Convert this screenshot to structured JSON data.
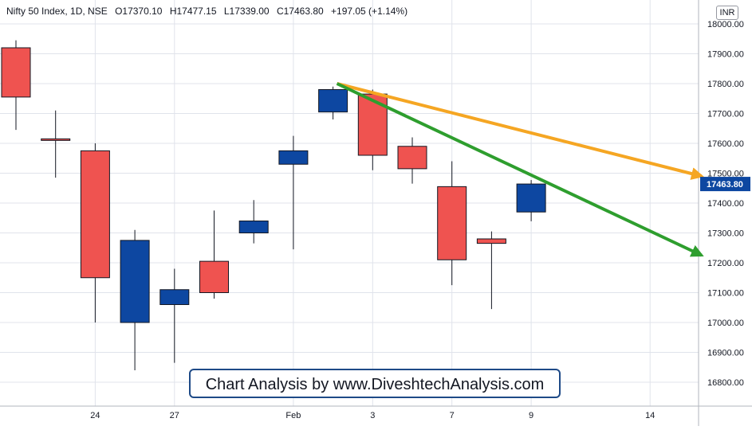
{
  "header": {
    "symbol": "Nifty 50 Index, 1D, NSE",
    "open": "O17370.10",
    "high": "H17477.15",
    "low": "L17339.00",
    "close": "C17463.80",
    "change": "+197.05 (+1.14%)"
  },
  "currency": "INR",
  "watermark": "Chart Analysis by www.DiveshtechAnalysis.com",
  "price_label": "17463.80",
  "colors": {
    "up": "#0d47a1",
    "down": "#ef5350",
    "grid": "#e0e3eb",
    "axis_text": "#131722",
    "orange_line": "#f5a623",
    "green_line": "#2e9e2e",
    "price_label_bg": "#0d47a1"
  },
  "chart_data": {
    "type": "candlestick",
    "ylim": [
      16730,
      18040
    ],
    "y_ticks": [
      16800,
      16900,
      17000,
      17100,
      17200,
      17300,
      17400,
      17500,
      17600,
      17700,
      17800,
      17900,
      18000
    ],
    "y_tick_labels": [
      "16800.00",
      "16900.00",
      "17000.00",
      "17100.00",
      "17200.00",
      "17300.00",
      "17400.00",
      "17500.00",
      "17600.00",
      "17700.00",
      "17800.00",
      "17900.00",
      "18000.00"
    ],
    "x_labels": [
      {
        "index": 2,
        "label": "24"
      },
      {
        "index": 4,
        "label": "27"
      },
      {
        "index": 7,
        "label": "Feb"
      },
      {
        "index": 9,
        "label": "3"
      },
      {
        "index": 11,
        "label": "7"
      },
      {
        "index": 13,
        "label": "9"
      },
      {
        "index": 16,
        "label": "14"
      }
    ],
    "candles": [
      {
        "index": 0,
        "open": 17920,
        "high": 17945,
        "low": 17645,
        "close": 17755
      },
      {
        "index": 1,
        "open": 17615,
        "high": 17710,
        "low": 17485,
        "close": 17610
      },
      {
        "index": 2,
        "open": 17575,
        "high": 17600,
        "low": 17000,
        "close": 17150
      },
      {
        "index": 3,
        "open": 17000,
        "high": 17310,
        "low": 16840,
        "close": 17275
      },
      {
        "index": 4,
        "open": 17060,
        "high": 17180,
        "low": 16865,
        "close": 17110
      },
      {
        "index": 5,
        "open": 17205,
        "high": 17375,
        "low": 17080,
        "close": 17100
      },
      {
        "index": 6,
        "open": 17300,
        "high": 17410,
        "low": 17265,
        "close": 17340
      },
      {
        "index": 7,
        "open": 17530,
        "high": 17625,
        "low": 17245,
        "close": 17575
      },
      {
        "index": 8,
        "open": 17705,
        "high": 17790,
        "low": 17680,
        "close": 17780
      },
      {
        "index": 9,
        "open": 17765,
        "high": 17780,
        "low": 17510,
        "close": 17560
      },
      {
        "index": 10,
        "open": 17590,
        "high": 17620,
        "low": 17465,
        "close": 17515
      },
      {
        "index": 11,
        "open": 17455,
        "high": 17540,
        "low": 17125,
        "close": 17210
      },
      {
        "index": 12,
        "open": 17280,
        "high": 17305,
        "low": 17045,
        "close": 17265
      },
      {
        "index": 13,
        "open": 17370.1,
        "high": 17477.15,
        "low": 17339.0,
        "close": 17463.8
      }
    ],
    "trendlines": [
      {
        "name": "orange",
        "x0": 8.1,
        "y0": 17800,
        "x1": 17.3,
        "y1": 17490
      },
      {
        "name": "green",
        "x0": 8.1,
        "y0": 17800,
        "x1": 17.3,
        "y1": 17225
      }
    ],
    "grid": true,
    "last_price": 17463.8
  }
}
